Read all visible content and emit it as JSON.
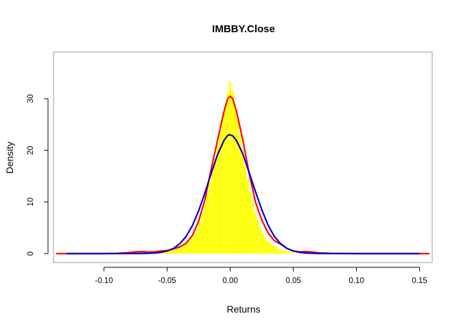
{
  "chart_data": {
    "type": "histogram",
    "title": "IMBBY.Close",
    "xlabel": "Returns",
    "ylabel": "Density",
    "xlim": [
      -0.14,
      0.16
    ],
    "ylim": [
      0,
      36
    ],
    "xticks": [
      "-0.10",
      "-0.05",
      "0.00",
      "0.05",
      "0.10",
      "0.15"
    ],
    "xtick_values": [
      -0.1,
      -0.05,
      0.0,
      0.05,
      0.1,
      0.15
    ],
    "yticks": [
      "0",
      "10",
      "20",
      "30"
    ],
    "ytick_values": [
      0,
      10,
      20,
      30
    ],
    "grid": false,
    "histogram": {
      "color": "#ffff00",
      "bin_width": 0.002,
      "bins": [
        [
          -0.06,
          0.3
        ],
        [
          -0.058,
          0.3
        ],
        [
          -0.056,
          0.4
        ],
        [
          -0.054,
          0.5
        ],
        [
          -0.052,
          0.6
        ],
        [
          -0.05,
          0.6
        ],
        [
          -0.048,
          0.7
        ],
        [
          -0.046,
          0.8
        ],
        [
          -0.044,
          0.9
        ],
        [
          -0.042,
          1.0
        ],
        [
          -0.04,
          1.2
        ],
        [
          -0.038,
          1.4
        ],
        [
          -0.036,
          1.7
        ],
        [
          -0.034,
          2.0
        ],
        [
          -0.032,
          2.4
        ],
        [
          -0.03,
          3.0
        ],
        [
          -0.028,
          3.8
        ],
        [
          -0.026,
          4.8
        ],
        [
          -0.024,
          6.0
        ],
        [
          -0.022,
          7.6
        ],
        [
          -0.02,
          9.5
        ],
        [
          -0.018,
          11.5
        ],
        [
          -0.016,
          13.8
        ],
        [
          -0.014,
          16.0
        ],
        [
          -0.012,
          18.5
        ],
        [
          -0.01,
          20.8
        ],
        [
          -0.008,
          23.5
        ],
        [
          -0.006,
          26.5
        ],
        [
          -0.004,
          28.5
        ],
        [
          -0.002,
          31.0
        ],
        [
          0.0,
          33.3
        ],
        [
          0.002,
          31.5
        ],
        [
          0.004,
          29.0
        ],
        [
          0.006,
          26.0
        ],
        [
          0.008,
          23.0
        ],
        [
          0.01,
          20.0
        ],
        [
          0.012,
          17.0
        ],
        [
          0.014,
          14.5
        ],
        [
          0.016,
          12.0
        ],
        [
          0.018,
          9.8
        ],
        [
          0.02,
          8.0
        ],
        [
          0.022,
          6.4
        ],
        [
          0.024,
          5.0
        ],
        [
          0.026,
          3.9
        ],
        [
          0.028,
          3.0
        ],
        [
          0.03,
          2.4
        ],
        [
          0.032,
          2.0
        ],
        [
          0.034,
          1.6
        ],
        [
          0.036,
          1.3
        ],
        [
          0.038,
          1.0
        ],
        [
          0.04,
          0.8
        ],
        [
          0.042,
          0.6
        ],
        [
          0.044,
          0.5
        ],
        [
          0.046,
          0.4
        ],
        [
          0.048,
          0.3
        ]
      ]
    },
    "series": [
      {
        "color": "#ff0000",
        "style": "kernel density",
        "x": [
          -0.138,
          -0.12,
          -0.1,
          -0.09,
          -0.08,
          -0.075,
          -0.07,
          -0.065,
          -0.06,
          -0.055,
          -0.05,
          -0.045,
          -0.04,
          -0.035,
          -0.03,
          -0.025,
          -0.02,
          -0.015,
          -0.01,
          -0.005,
          -0.002,
          0.0,
          0.002,
          0.005,
          0.01,
          0.015,
          0.02,
          0.025,
          0.03,
          0.035,
          0.04,
          0.045,
          0.05,
          0.055,
          0.06,
          0.065,
          0.07,
          0.08,
          0.1,
          0.12,
          0.14,
          0.158
        ],
        "y": [
          0.0,
          0.0,
          0.0,
          0.05,
          0.2,
          0.35,
          0.4,
          0.3,
          0.35,
          0.5,
          0.6,
          0.9,
          1.3,
          2.0,
          3.5,
          6.3,
          10.5,
          16.5,
          22.0,
          27.5,
          30.0,
          30.5,
          30.0,
          27.5,
          22.0,
          15.5,
          10.0,
          6.5,
          4.0,
          2.5,
          1.8,
          1.0,
          0.5,
          0.35,
          0.4,
          0.3,
          0.15,
          0.05,
          0.0,
          0.0,
          0.0,
          0.0
        ]
      },
      {
        "color": "#0000cc",
        "style": "normal fit",
        "x": [
          -0.13,
          -0.1,
          -0.08,
          -0.07,
          -0.06,
          -0.055,
          -0.05,
          -0.045,
          -0.04,
          -0.035,
          -0.03,
          -0.025,
          -0.02,
          -0.015,
          -0.01,
          -0.005,
          -0.002,
          0.0,
          0.002,
          0.005,
          0.01,
          0.015,
          0.02,
          0.025,
          0.03,
          0.035,
          0.04,
          0.045,
          0.05,
          0.055,
          0.06,
          0.07,
          0.08,
          0.1,
          0.13,
          0.15
        ],
        "y": [
          0.0,
          0.0,
          0.01,
          0.03,
          0.1,
          0.25,
          0.5,
          1.0,
          1.9,
          3.3,
          5.4,
          8.3,
          11.8,
          15.6,
          19.2,
          21.9,
          22.9,
          23.0,
          22.8,
          21.9,
          19.3,
          15.7,
          12.0,
          8.5,
          5.5,
          3.3,
          1.9,
          1.0,
          0.5,
          0.25,
          0.1,
          0.03,
          0.01,
          0.0,
          0.0,
          0.0
        ]
      }
    ]
  }
}
